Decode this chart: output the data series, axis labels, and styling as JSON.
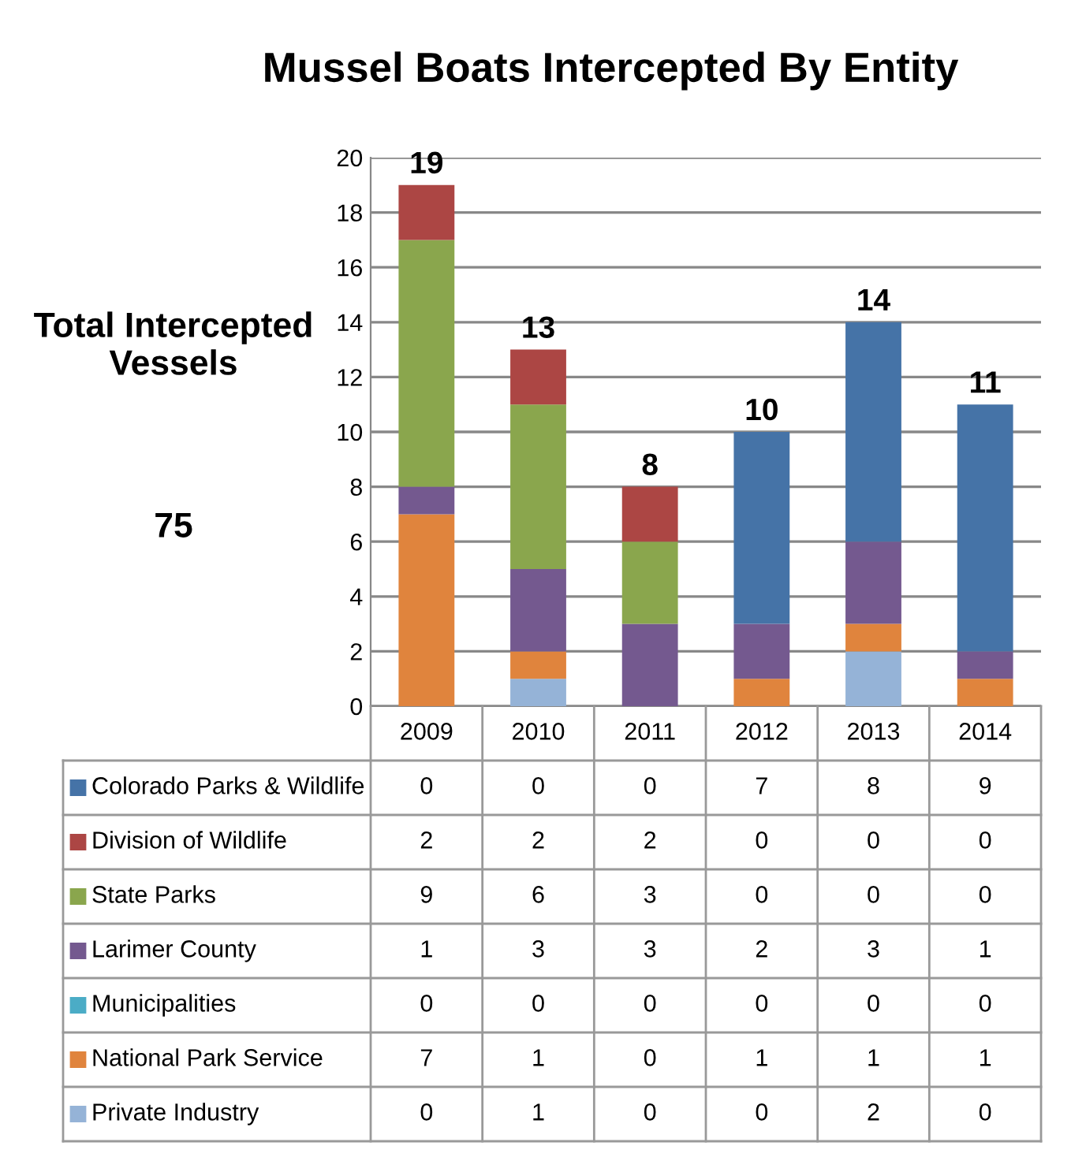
{
  "chart_data": {
    "type": "bar",
    "stacked": true,
    "title": "Mussel Boats Intercepted By Entity",
    "categories": [
      "2009",
      "2010",
      "2011",
      "2012",
      "2013",
      "2014"
    ],
    "series": [
      {
        "name": "Private Industry",
        "color": "#95b3d7",
        "values": [
          0,
          1,
          0,
          0,
          2,
          0
        ]
      },
      {
        "name": "National Park Service",
        "color": "#e0843d",
        "values": [
          7,
          1,
          0,
          1,
          1,
          1
        ]
      },
      {
        "name": "Municipalities",
        "color": "#4bacc6",
        "values": [
          0,
          0,
          0,
          0,
          0,
          0
        ]
      },
      {
        "name": "Larimer County",
        "color": "#74598f",
        "values": [
          1,
          3,
          3,
          2,
          3,
          1
        ]
      },
      {
        "name": "State Parks",
        "color": "#8aa64d",
        "values": [
          9,
          6,
          3,
          0,
          0,
          0
        ]
      },
      {
        "name": "Division of Wildlife",
        "color": "#ac4644",
        "values": [
          2,
          2,
          2,
          0,
          0,
          0
        ]
      },
      {
        "name": "Colorado Parks & Wildlife",
        "color": "#4573a7",
        "values": [
          0,
          0,
          0,
          7,
          8,
          9
        ]
      }
    ],
    "ylim": [
      0,
      20
    ],
    "yticks": [
      0,
      2,
      4,
      6,
      8,
      10,
      12,
      14,
      16,
      18,
      20
    ],
    "grid": "y",
    "data_labels": true,
    "legend": "bottom",
    "totals": [
      "19",
      "13",
      "8",
      "10",
      "14",
      "11"
    ],
    "annotations": [
      "Total Intercepted Vessels",
      "75"
    ]
  }
}
